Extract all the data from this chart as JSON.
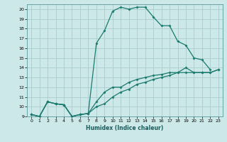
{
  "xlabel": "Humidex (Indice chaleur)",
  "bg_color": "#cce8e8",
  "grid_color": "#aacccc",
  "line_color": "#1a7a6e",
  "xlim": [
    -0.5,
    23.5
  ],
  "ylim": [
    9,
    20.5
  ],
  "xticks": [
    0,
    1,
    2,
    3,
    4,
    5,
    6,
    7,
    8,
    9,
    10,
    11,
    12,
    13,
    14,
    15,
    16,
    17,
    18,
    19,
    20,
    21,
    22,
    23
  ],
  "yticks": [
    9,
    10,
    11,
    12,
    13,
    14,
    15,
    16,
    17,
    18,
    19,
    20
  ],
  "line1_x": [
    0,
    1,
    2,
    3,
    4,
    5,
    6,
    7,
    8,
    9,
    10,
    11,
    12,
    13,
    14,
    15,
    16,
    17,
    18,
    19,
    20,
    21,
    22,
    23
  ],
  "line1_y": [
    9.2,
    9.0,
    10.5,
    10.3,
    10.2,
    9.0,
    9.2,
    9.3,
    10.0,
    10.3,
    11.0,
    11.5,
    11.8,
    12.3,
    12.5,
    12.8,
    13.0,
    13.2,
    13.5,
    13.5,
    13.5,
    13.5,
    13.5,
    13.8
  ],
  "line2_x": [
    0,
    1,
    2,
    3,
    4,
    5,
    6,
    7,
    8,
    9,
    10,
    11,
    12,
    13,
    14,
    15,
    16,
    17,
    18,
    19,
    20,
    21,
    22
  ],
  "line2_y": [
    9.2,
    9.0,
    10.5,
    10.3,
    10.2,
    9.0,
    9.2,
    9.3,
    16.5,
    17.8,
    19.8,
    20.2,
    20.0,
    20.2,
    20.2,
    19.2,
    18.3,
    18.3,
    16.7,
    16.3,
    15.0,
    14.8,
    13.8
  ],
  "line3_x": [
    0,
    1,
    2,
    3,
    4,
    5,
    6,
    7,
    8,
    9,
    10,
    11,
    12,
    13,
    14,
    15,
    16,
    17,
    18,
    19,
    20,
    21,
    22,
    23
  ],
  "line3_y": [
    9.2,
    9.0,
    10.5,
    10.3,
    10.2,
    9.0,
    9.2,
    9.3,
    10.5,
    11.5,
    12.0,
    12.0,
    12.5,
    12.8,
    13.0,
    13.2,
    13.3,
    13.5,
    13.5,
    14.0,
    13.5,
    13.5,
    13.5,
    13.8
  ]
}
